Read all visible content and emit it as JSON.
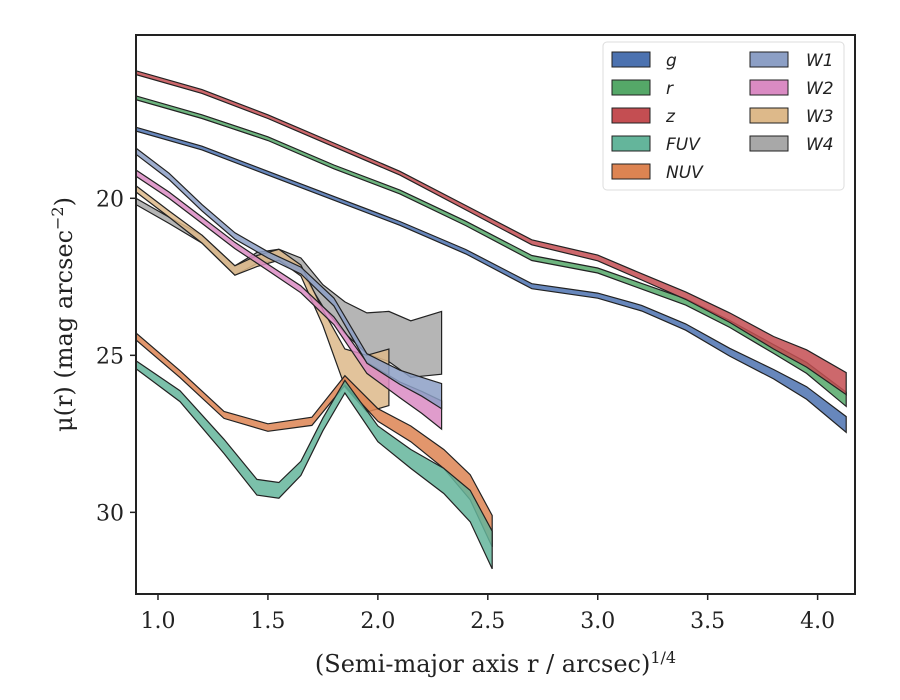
{
  "chart_data": {
    "type": "area",
    "title": "",
    "xlabel": "(Semi-major axis r / arcsec)",
    "xlabel_sup": "1/4",
    "ylabel": "μ(r) (mag arcsec",
    "ylabel_sup": "−2",
    "ylabel_end": ")",
    "xlim": [
      0.9,
      4.17
    ],
    "ylim": [
      32.6,
      14.8
    ],
    "y_inverted": true,
    "x_ticks": [
      "1.0",
      "1.5",
      "2.0",
      "2.5",
      "3.0",
      "3.5",
      "4.0"
    ],
    "x_tick_values": [
      1.0,
      1.5,
      2.0,
      2.5,
      3.0,
      3.5,
      4.0
    ],
    "y_ticks": [
      "20",
      "25",
      "30"
    ],
    "y_tick_values": [
      20,
      25,
      30
    ],
    "grid": false,
    "legend_position": "top-right",
    "series": [
      {
        "name": "g",
        "color": "#4c72b0",
        "x": [
          0.9,
          1.2,
          1.5,
          1.8,
          2.1,
          2.4,
          2.7,
          3.0,
          3.2,
          3.4,
          3.6,
          3.8,
          3.95,
          4.13
        ],
        "y": [
          17.8,
          18.4,
          19.2,
          20.0,
          20.8,
          21.7,
          22.8,
          23.1,
          23.5,
          24.1,
          24.9,
          25.6,
          26.2,
          27.2
        ],
        "width": [
          0.12,
          0.12,
          0.12,
          0.12,
          0.12,
          0.14,
          0.16,
          0.16,
          0.18,
          0.2,
          0.25,
          0.3,
          0.4,
          0.5
        ]
      },
      {
        "name": "r",
        "color": "#55a868",
        "x": [
          0.9,
          1.2,
          1.5,
          1.8,
          2.1,
          2.4,
          2.7,
          3.0,
          3.2,
          3.4,
          3.6,
          3.8,
          3.95,
          4.13
        ],
        "y": [
          16.8,
          17.4,
          18.1,
          19.0,
          19.8,
          20.8,
          21.9,
          22.3,
          22.8,
          23.3,
          24.0,
          24.8,
          25.4,
          26.4
        ],
        "width": [
          0.12,
          0.12,
          0.12,
          0.12,
          0.12,
          0.14,
          0.16,
          0.16,
          0.18,
          0.2,
          0.22,
          0.28,
          0.35,
          0.45
        ]
      },
      {
        "name": "z",
        "color": "#c44e52",
        "x": [
          0.9,
          1.2,
          1.5,
          1.8,
          2.1,
          2.4,
          2.7,
          3.0,
          3.2,
          3.4,
          3.6,
          3.8,
          3.95,
          4.13
        ],
        "y": [
          16.0,
          16.6,
          17.4,
          18.3,
          19.2,
          20.3,
          21.4,
          21.9,
          22.5,
          23.1,
          23.8,
          24.6,
          25.1,
          25.9
        ],
        "width": [
          0.12,
          0.12,
          0.12,
          0.12,
          0.12,
          0.14,
          0.16,
          0.18,
          0.2,
          0.24,
          0.3,
          0.4,
          0.55,
          0.7
        ]
      },
      {
        "name": "FUV",
        "color": "#64b59b",
        "x": [
          0.9,
          1.1,
          1.3,
          1.45,
          1.55,
          1.65,
          1.75,
          1.85,
          2.0,
          2.15,
          2.3,
          2.42,
          2.52
        ],
        "y": [
          25.3,
          26.3,
          27.9,
          29.2,
          29.3,
          28.6,
          27.2,
          26.0,
          27.5,
          28.3,
          29.0,
          29.8,
          31.2
        ],
        "width": [
          0.25,
          0.35,
          0.45,
          0.5,
          0.5,
          0.45,
          0.4,
          0.4,
          0.5,
          0.6,
          0.8,
          1.0,
          1.2
        ]
      },
      {
        "name": "NUV",
        "color": "#dd8452",
        "x": [
          0.9,
          1.1,
          1.3,
          1.5,
          1.7,
          1.85,
          2.0,
          2.15,
          2.3,
          2.42,
          2.52
        ],
        "y": [
          24.4,
          25.6,
          26.9,
          27.3,
          27.1,
          25.8,
          26.9,
          27.5,
          28.3,
          29.2,
          30.6
        ],
        "width": [
          0.22,
          0.22,
          0.22,
          0.24,
          0.26,
          0.3,
          0.4,
          0.5,
          0.6,
          0.8,
          1.0
        ]
      },
      {
        "name": "W1",
        "color": "#8c9fc5",
        "x": [
          0.9,
          1.05,
          1.2,
          1.35,
          1.5,
          1.65,
          1.8,
          1.95,
          2.1,
          2.2,
          2.29
        ],
        "y": [
          18.5,
          19.3,
          20.3,
          21.2,
          21.8,
          22.3,
          23.3,
          25.1,
          25.7,
          26.0,
          26.3
        ],
        "width": [
          0.2,
          0.2,
          0.2,
          0.2,
          0.2,
          0.22,
          0.25,
          0.3,
          0.45,
          0.6,
          0.8
        ]
      },
      {
        "name": "W2",
        "color": "#da8bc3",
        "x": [
          0.9,
          1.05,
          1.2,
          1.35,
          1.5,
          1.65,
          1.8,
          1.95,
          2.1,
          2.2,
          2.29
        ],
        "y": [
          19.2,
          19.9,
          20.7,
          21.5,
          22.2,
          22.9,
          23.9,
          25.4,
          26.1,
          26.5,
          26.9
        ],
        "width": [
          0.2,
          0.2,
          0.2,
          0.2,
          0.2,
          0.22,
          0.25,
          0.35,
          0.5,
          0.7,
          0.9
        ]
      },
      {
        "name": "W3",
        "color": "#ddb98a",
        "x": [
          0.9,
          1.05,
          1.2,
          1.35,
          1.45,
          1.55,
          1.65,
          1.75,
          1.85,
          1.95,
          2.05
        ],
        "y": [
          19.7,
          20.5,
          21.3,
          22.3,
          22.0,
          21.8,
          22.3,
          23.8,
          25.4,
          25.9,
          25.7
        ],
        "width": [
          0.2,
          0.2,
          0.25,
          0.3,
          0.35,
          0.35,
          0.35,
          0.5,
          1.2,
          1.8,
          1.8
        ]
      },
      {
        "name": "W4",
        "color": "#a8a8a8",
        "x": [
          0.9,
          1.05,
          1.2,
          1.35,
          1.45,
          1.55,
          1.65,
          1.75,
          1.85,
          1.95,
          2.05,
          2.15,
          2.29
        ],
        "y": [
          20.1,
          20.7,
          21.3,
          22.3,
          21.9,
          21.8,
          22.1,
          23.1,
          23.8,
          24.3,
          24.4,
          24.8,
          24.6
        ],
        "width": [
          0.2,
          0.2,
          0.25,
          0.3,
          0.35,
          0.35,
          0.4,
          0.7,
          1.0,
          1.3,
          1.6,
          1.8,
          2.0
        ]
      }
    ]
  }
}
